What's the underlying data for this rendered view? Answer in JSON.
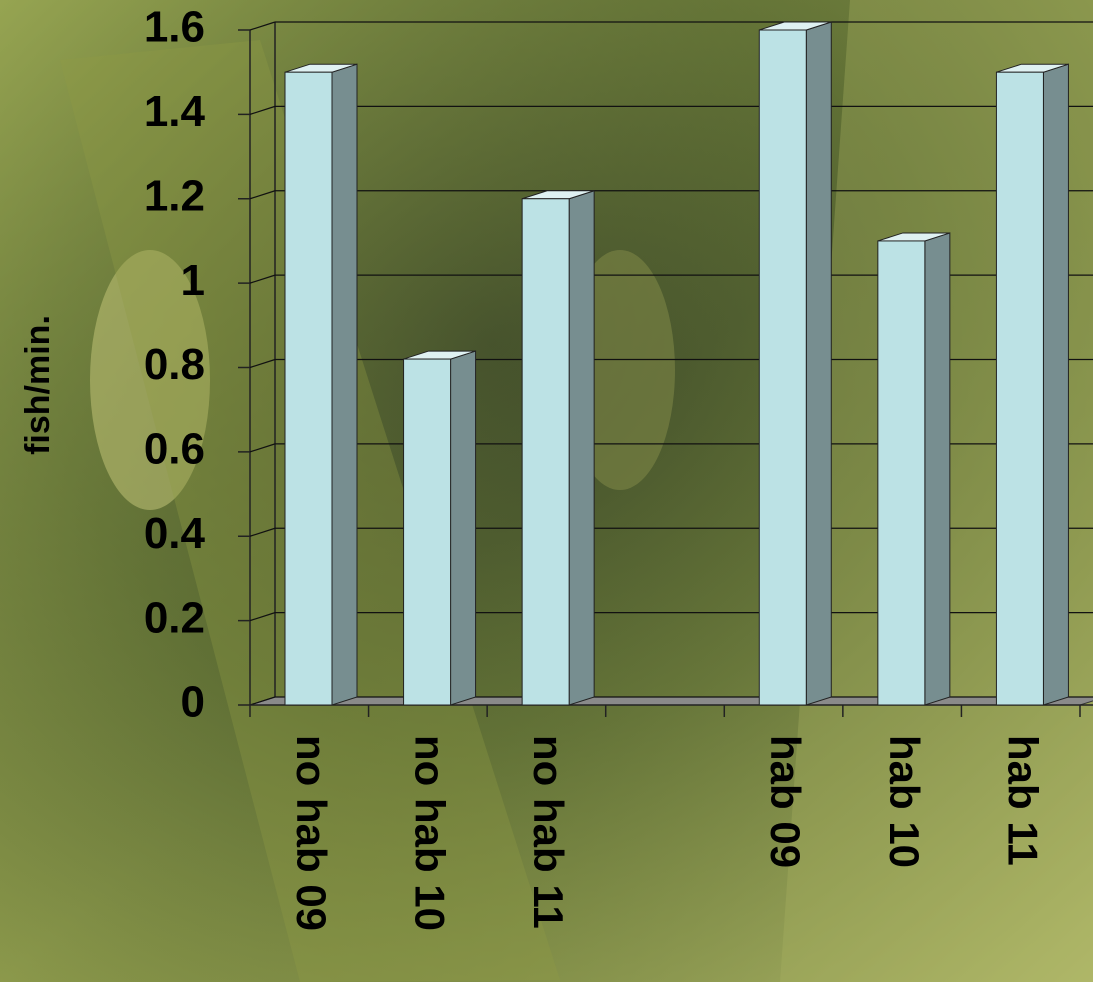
{
  "chart_data": {
    "type": "bar",
    "y_label": "fish/min.",
    "categories": [
      "no hab 09",
      "no hab 10",
      "no hab 11",
      null,
      "hab 09",
      "hab 10",
      "hab 11"
    ],
    "values": [
      1.5,
      0.82,
      1.2,
      null,
      1.6,
      1.1,
      1.5
    ],
    "color": "#bce2e5",
    "ylim": [
      0,
      1.6
    ],
    "yticks": [
      0,
      0.2,
      0.4,
      0.6,
      0.8,
      1,
      1.2,
      1.4,
      1.6
    ],
    "grid": true
  }
}
